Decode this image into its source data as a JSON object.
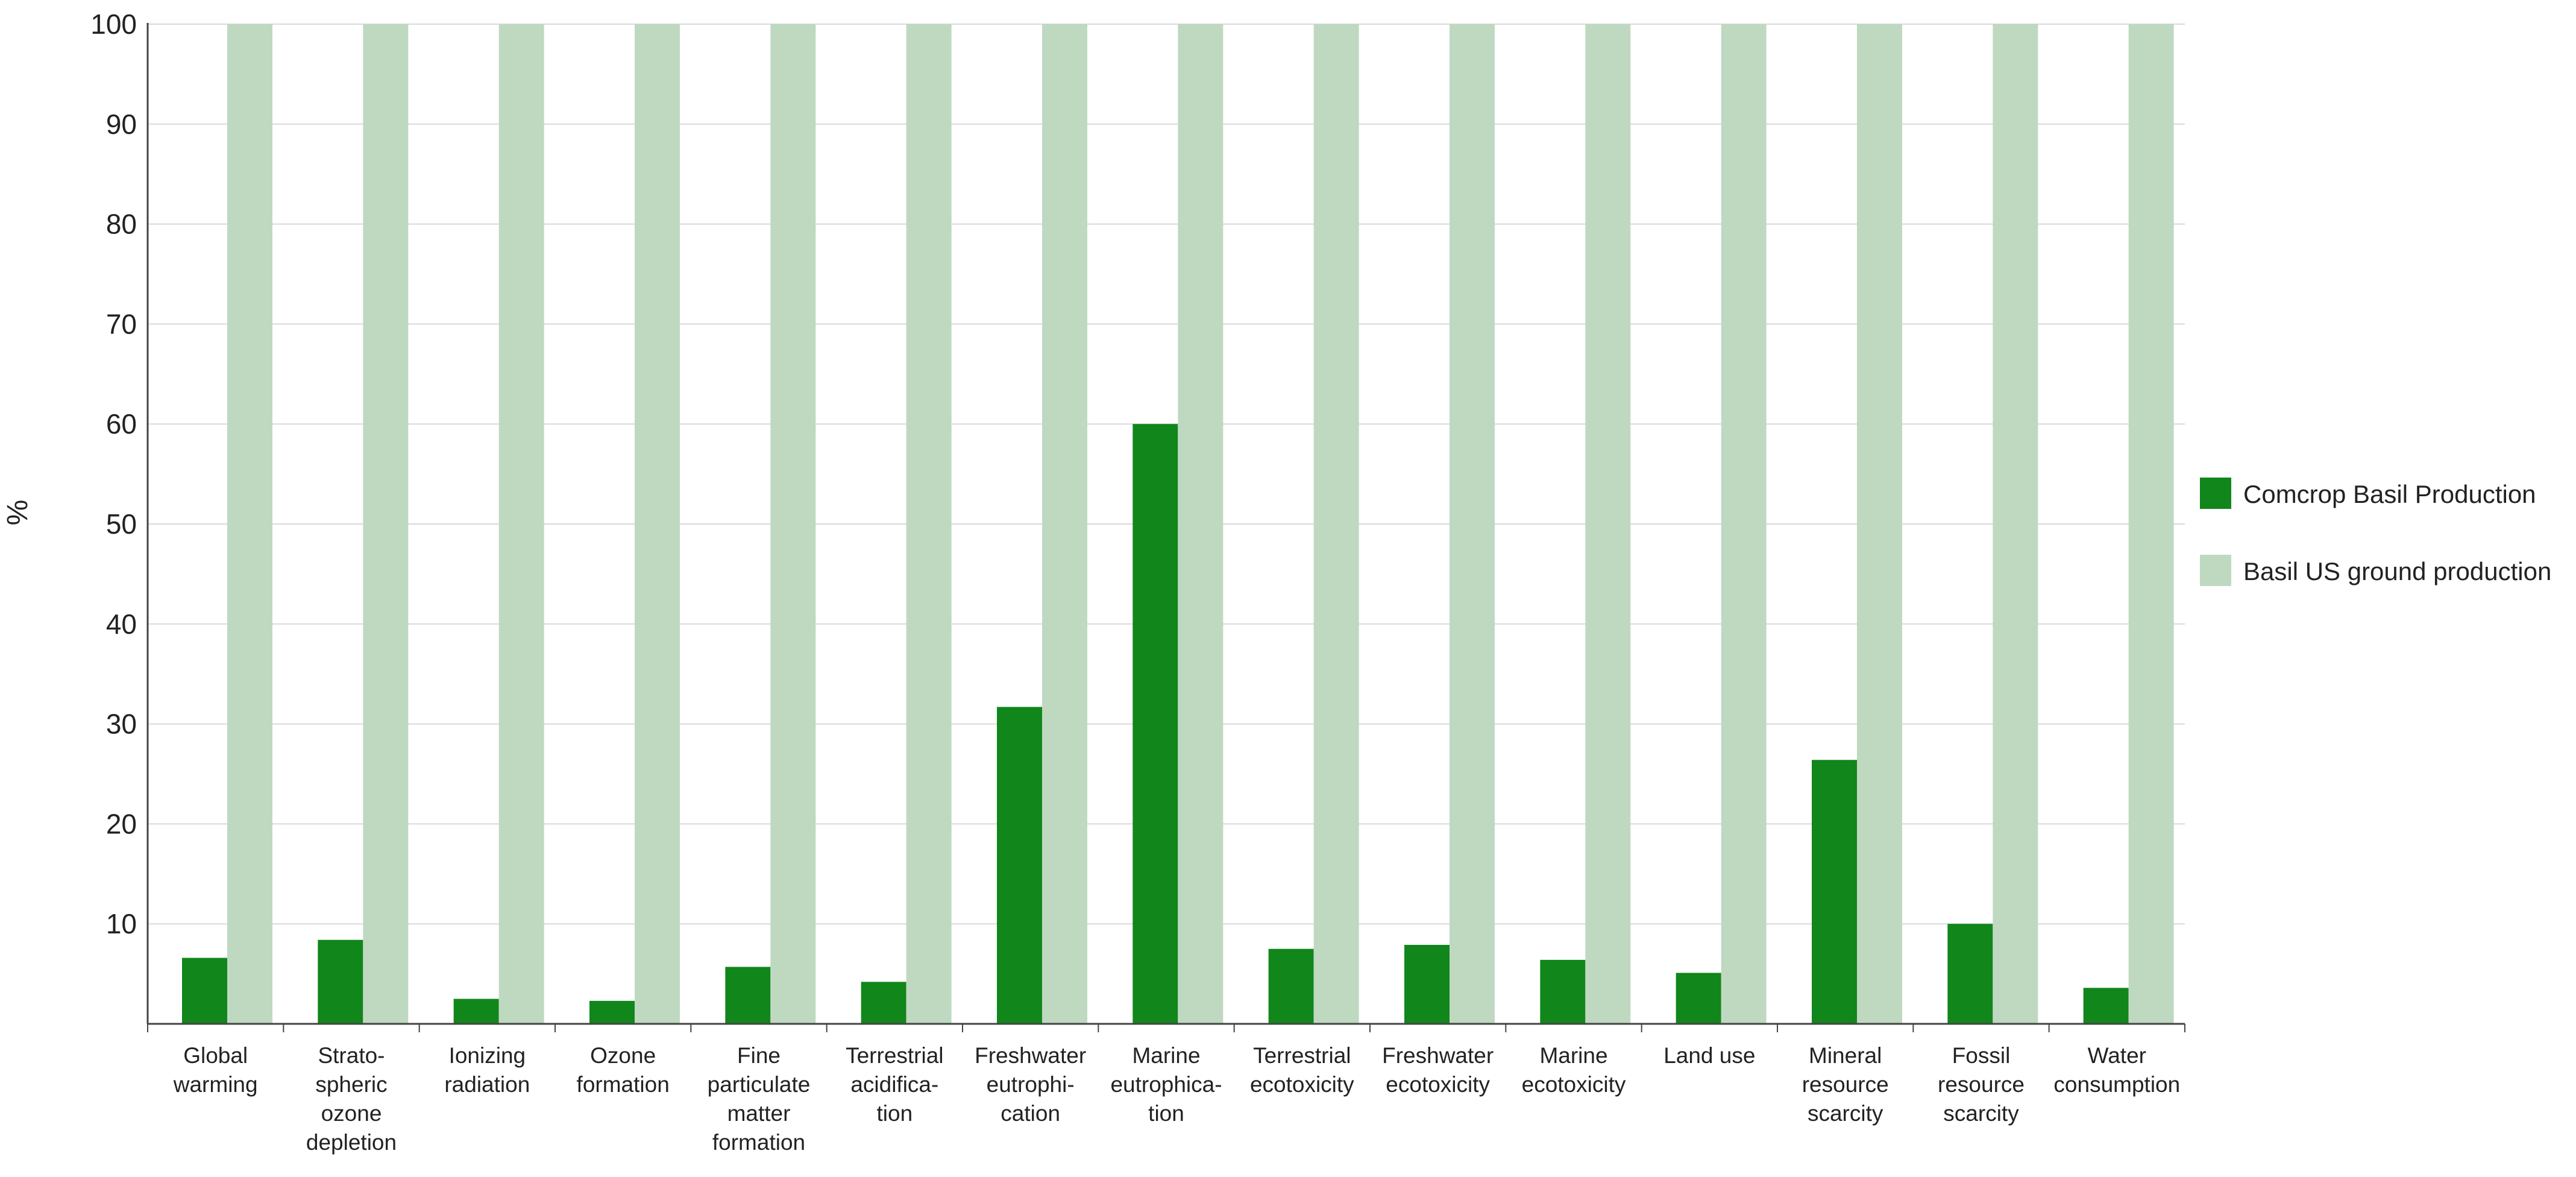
{
  "chart_data": {
    "type": "bar",
    "title": "",
    "xlabel": "",
    "ylabel": "%",
    "ylim": [
      0,
      100
    ],
    "yticks": [
      10,
      20,
      30,
      40,
      50,
      60,
      70,
      80,
      90,
      100
    ],
    "grid": true,
    "legend_position": "right",
    "categories": [
      [
        "Global",
        "warming"
      ],
      [
        "Strato-",
        "spheric",
        "ozone",
        "depletion"
      ],
      [
        "Ionizing",
        "radiation"
      ],
      [
        "Ozone",
        "formation"
      ],
      [
        "Fine",
        "particulate",
        "matter",
        "formation"
      ],
      [
        "Terrestrial",
        "acidifica-",
        "tion"
      ],
      [
        "Freshwater",
        "eutrophi-",
        "cation"
      ],
      [
        "Marine",
        "eutrophica-",
        "tion"
      ],
      [
        "Terrestrial",
        "ecotoxicity"
      ],
      [
        "Freshwater",
        "ecotoxicity"
      ],
      [
        "Marine",
        "ecotoxicity"
      ],
      [
        "Land use"
      ],
      [
        "Mineral",
        "resource",
        "scarcity"
      ],
      [
        "Fossil",
        "resource",
        "scarcity"
      ],
      [
        "Water",
        "consumption"
      ]
    ],
    "series": [
      {
        "name": "Comcrop Basil Production",
        "color": "#11861b",
        "values": [
          6.6,
          8.4,
          2.5,
          2.3,
          5.7,
          4.2,
          31.7,
          60.0,
          7.5,
          7.9,
          6.4,
          5.1,
          26.4,
          10.0,
          3.6
        ]
      },
      {
        "name": "Basil US ground production",
        "color": "#bfd9c1",
        "values": [
          100,
          100,
          100,
          100,
          100,
          100,
          100,
          100,
          100,
          100,
          100,
          100,
          100,
          100,
          100
        ]
      }
    ]
  }
}
